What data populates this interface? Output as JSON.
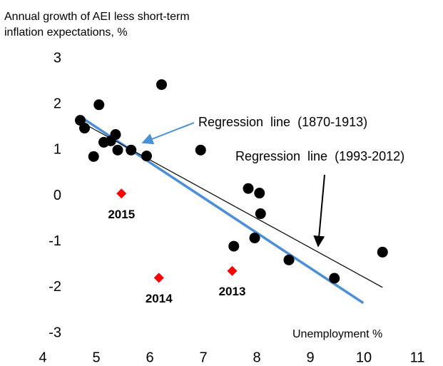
{
  "chart_data": {
    "type": "scatter",
    "ylabel": [
      "Annual growth of AEI less short-term",
      "inflation expectations, %"
    ],
    "xlabel": "Unemployment %",
    "xlim": [
      4,
      11
    ],
    "xticks": [
      4,
      5,
      6,
      7,
      8,
      9,
      10,
      11
    ],
    "ylim": [
      -3,
      3
    ],
    "yticks": [
      -3,
      -2,
      -1,
      0,
      1,
      2,
      3
    ],
    "grid": false,
    "series": [
      {
        "type": "scatter",
        "marker": "circle",
        "color": "#000000",
        "x": [
          4.7,
          4.78,
          5.05,
          4.95,
          5.14,
          5.27,
          5.36,
          5.4,
          5.65,
          5.94,
          6.22,
          6.95,
          7.84,
          8.05,
          8.07,
          7.57,
          7.96,
          8.6,
          9.45,
          10.35
        ],
        "values": [
          1.65,
          1.48,
          1.99,
          0.86,
          1.17,
          1.2,
          1.34,
          1.0,
          1.0,
          0.87,
          2.43,
          1.0,
          0.16,
          0.06,
          -0.39,
          -1.1,
          -0.92,
          -1.4,
          -1.8,
          -1.23
        ]
      },
      {
        "type": "scatter",
        "marker": "diamond",
        "color": "#ff0000",
        "x": [
          5.47,
          6.17,
          7.54
        ],
        "values": [
          0.05,
          -1.79,
          -1.64
        ],
        "labels": [
          "2015",
          "2014",
          "2013"
        ]
      },
      {
        "type": "line",
        "color": "#4a8fd8",
        "x": [
          4.7,
          9.99
        ],
        "values": [
          1.73,
          -2.34
        ],
        "label": "Regression  line  (1870-1913)"
      },
      {
        "type": "line",
        "color": "#000000",
        "x": [
          4.7,
          10.35
        ],
        "values": [
          1.62,
          -2.0
        ],
        "label": "Regression  line  (1993-2012)"
      }
    ]
  }
}
